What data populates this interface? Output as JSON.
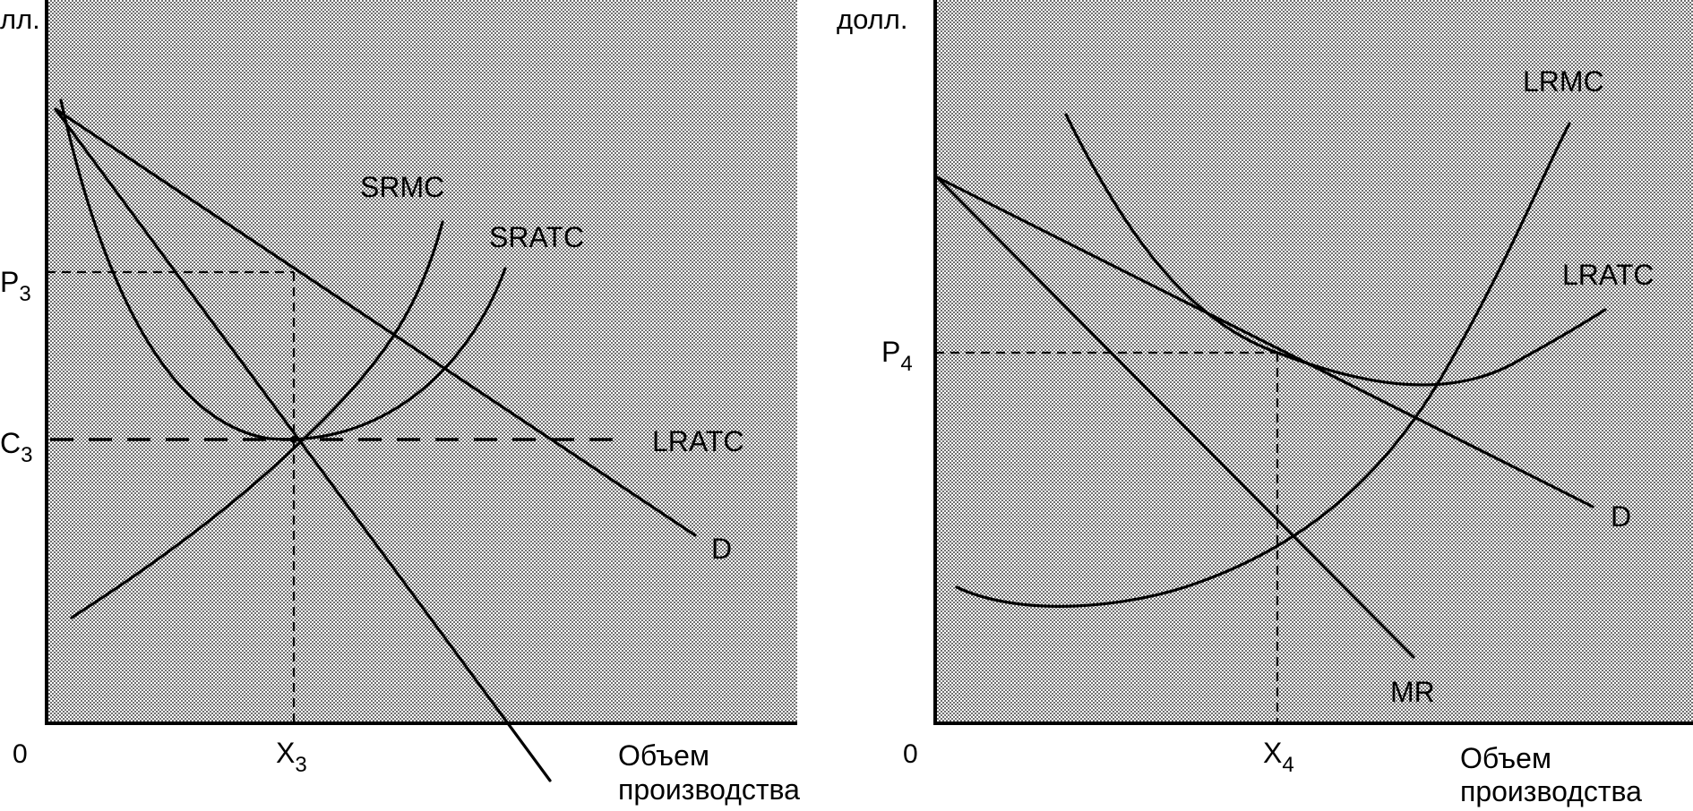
{
  "left_panel": {
    "y_unit_fragment": "лл.",
    "origin": "0",
    "x_label_line1": "Объем",
    "x_label_line2": "производства",
    "p_label": "P",
    "p_sub": "3",
    "c_label": "C",
    "c_sub": "3",
    "x_tick": "X",
    "x_sub": "3",
    "curves": {
      "srmc": "SRMC",
      "sratc": "SRATC",
      "lratc": "LRATC",
      "demand": "D"
    }
  },
  "right_panel": {
    "y_unit": "долл.",
    "origin": "0",
    "x_label_line1": "Объем",
    "x_label_line2": "производства",
    "p_label": "P",
    "p_sub": "4",
    "x_tick": "X",
    "x_sub": "4",
    "curves": {
      "lrmc": "LRMC",
      "lratc": "LRATC",
      "demand": "D",
      "mr": "MR"
    }
  },
  "colors": {
    "line": "#000000",
    "dot_fill": "#6f6f6f",
    "background": "#ffffff"
  }
}
